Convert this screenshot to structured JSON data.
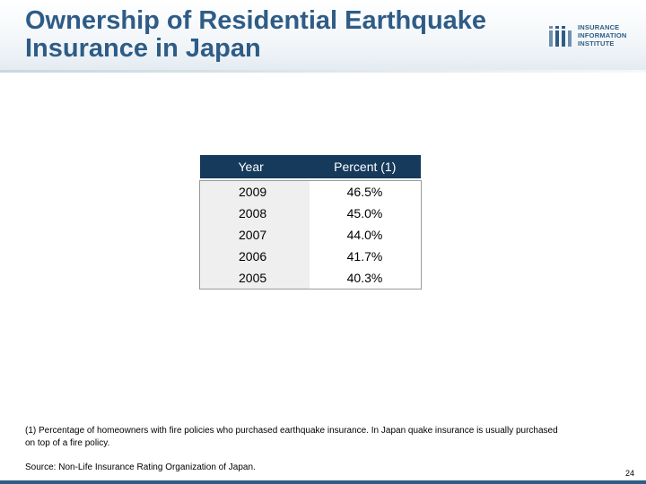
{
  "slide": {
    "title": "Ownership of Residential Earthquake Insurance in Japan",
    "logo_lines": [
      "INSURANCE",
      "INFORMATION",
      "INSTITUTE"
    ],
    "footnote": "(1) Percentage of  homeowners  with fire policies who purchased earthquake insurance.  In Japan quake insurance is usually purchased on top of a fire policy.",
    "source": "Source: Non-Life Insurance Rating Organization of Japan.",
    "page_number": "24"
  },
  "table": {
    "headers": [
      "Year",
      "Percent (1)"
    ],
    "rows": [
      {
        "year": "2009",
        "percent": "46.5%"
      },
      {
        "year": "2008",
        "percent": "45.0%"
      },
      {
        "year": "2007",
        "percent": "44.0%"
      },
      {
        "year": "2006",
        "percent": "41.7%"
      },
      {
        "year": "2005",
        "percent": "40.3%"
      }
    ]
  },
  "colors": {
    "title": "#2e5c86",
    "header_bg": "#163a5c"
  }
}
